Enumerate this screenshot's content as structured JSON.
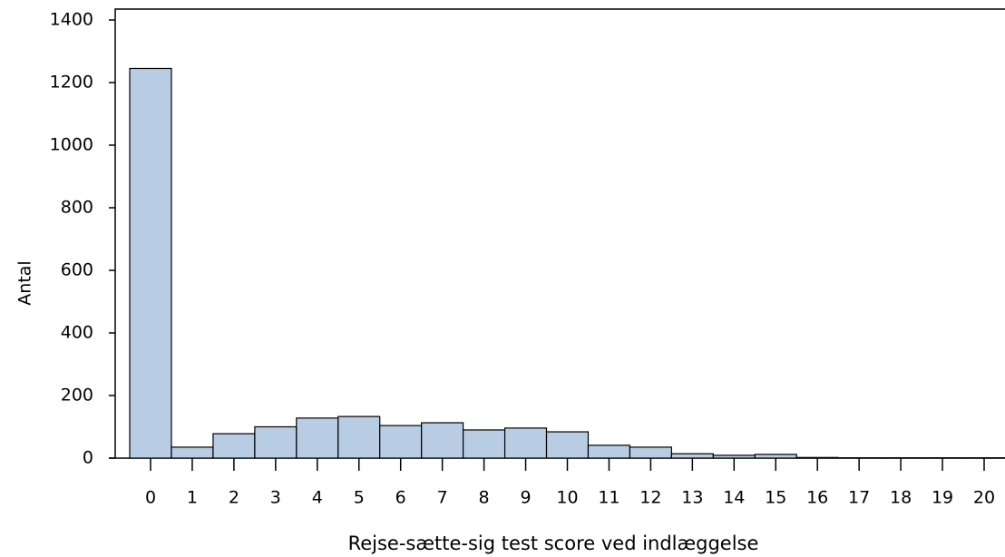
{
  "chart_data": {
    "type": "bar",
    "x_label": "Rejse-sætte-sig test score ved indlæggelse",
    "y_label": "Antal",
    "categories": [
      "0",
      "1",
      "2",
      "3",
      "4",
      "5",
      "6",
      "7",
      "8",
      "9",
      "10",
      "11",
      "12",
      "13",
      "14",
      "15",
      "16",
      "17",
      "18",
      "19",
      "20"
    ],
    "values": [
      1245,
      35,
      78,
      100,
      128,
      133,
      104,
      113,
      90,
      96,
      84,
      41,
      35,
      14,
      9,
      12,
      2,
      1,
      1,
      1,
      1
    ],
    "color": "#b8cce4",
    "ylim": [
      0,
      1400
    ],
    "yticks": [
      0,
      200,
      400,
      600,
      800,
      1000,
      1200,
      1400
    ],
    "grid": false
  }
}
